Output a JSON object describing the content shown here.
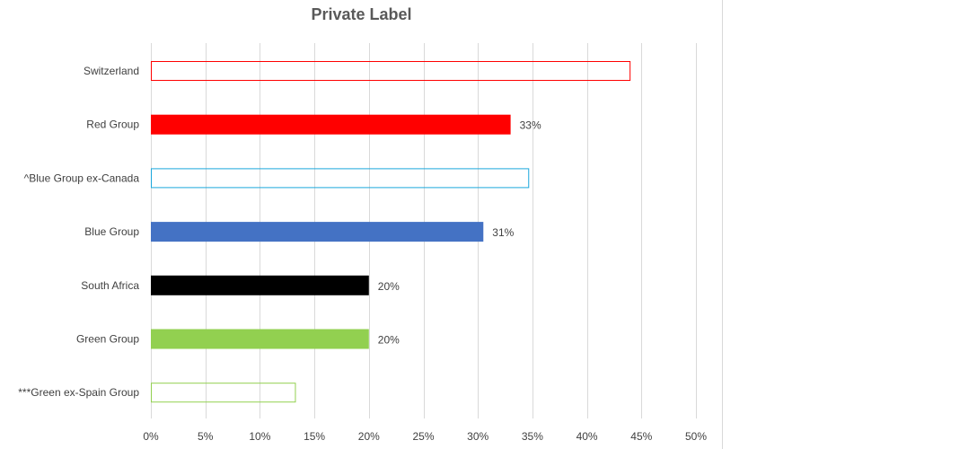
{
  "chart_data": {
    "type": "bar",
    "orientation": "horizontal",
    "title": "Private Label",
    "xlabel": "",
    "ylabel": "",
    "categories": [
      "Switzerland",
      "Red Group",
      "^Blue Group ex-Canada",
      "Blue Group",
      "South Africa",
      "Green Group",
      "***Green ex-Spain Group"
    ],
    "values": [
      44,
      33,
      34.7,
      30.5,
      20,
      20,
      13.3
    ],
    "data_labels": [
      "",
      "33%",
      "",
      "31%",
      "20%",
      "20%",
      ""
    ],
    "bar_styles": [
      {
        "fill": "none",
        "stroke": "#ff0000"
      },
      {
        "fill": "#ff0000",
        "stroke": "#ff0000"
      },
      {
        "fill": "none",
        "stroke": "#1aa7dc"
      },
      {
        "fill": "#4472c4",
        "stroke": "#4472c4"
      },
      {
        "fill": "#000000",
        "stroke": "#000000"
      },
      {
        "fill": "#92d050",
        "stroke": "#92d050"
      },
      {
        "fill": "none",
        "stroke": "#92d050"
      }
    ],
    "xlim": [
      0,
      50
    ],
    "xticks": [
      0,
      5,
      10,
      15,
      20,
      25,
      30,
      35,
      40,
      45,
      50
    ],
    "xtick_labels": [
      "0%",
      "5%",
      "10%",
      "15%",
      "20%",
      "25%",
      "30%",
      "35%",
      "40%",
      "45%",
      "50%"
    ],
    "grid": true,
    "legend": "none"
  }
}
